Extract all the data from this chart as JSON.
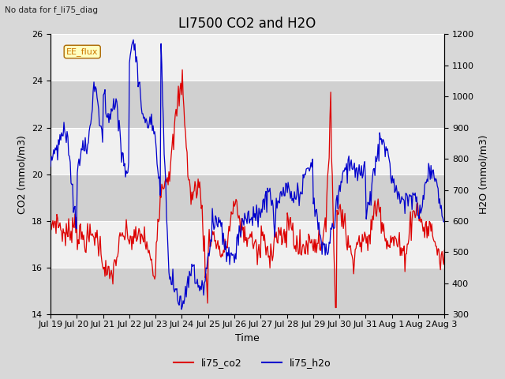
{
  "title": "LI7500 CO2 and H2O",
  "suptitle": "No data for f_li75_diag",
  "xlabel": "Time",
  "ylabel_left": "CO2 (mmol/m3)",
  "ylabel_right": "H2O (mmol/m3)",
  "ylim_left": [
    14,
    26
  ],
  "ylim_right": [
    300,
    1200
  ],
  "yticks_left": [
    14,
    16,
    18,
    20,
    22,
    24,
    26
  ],
  "yticks_right": [
    300,
    400,
    500,
    600,
    700,
    800,
    900,
    1000,
    1100,
    1200
  ],
  "xtick_labels": [
    "Jul 19",
    "Jul 20",
    "Jul 21",
    "Jul 22",
    "Jul 23",
    "Jul 24",
    "Jul 25",
    "Jul 26",
    "Jul 27",
    "Jul 28",
    "Jul 29",
    "Jul 30",
    "Jul 31",
    "Aug 1",
    "Aug 2",
    "Aug 3"
  ],
  "legend_box_label": "EE_flux",
  "legend_entries": [
    "li75_co2",
    "li75_h2o"
  ],
  "line_colors": [
    "#dd0000",
    "#0000cc"
  ],
  "background_color": "#d8d8d8",
  "plot_bg_color": "#e8e8e8",
  "stripe_color": "#d0d0d0",
  "title_fontsize": 12,
  "label_fontsize": 9,
  "tick_fontsize": 8
}
